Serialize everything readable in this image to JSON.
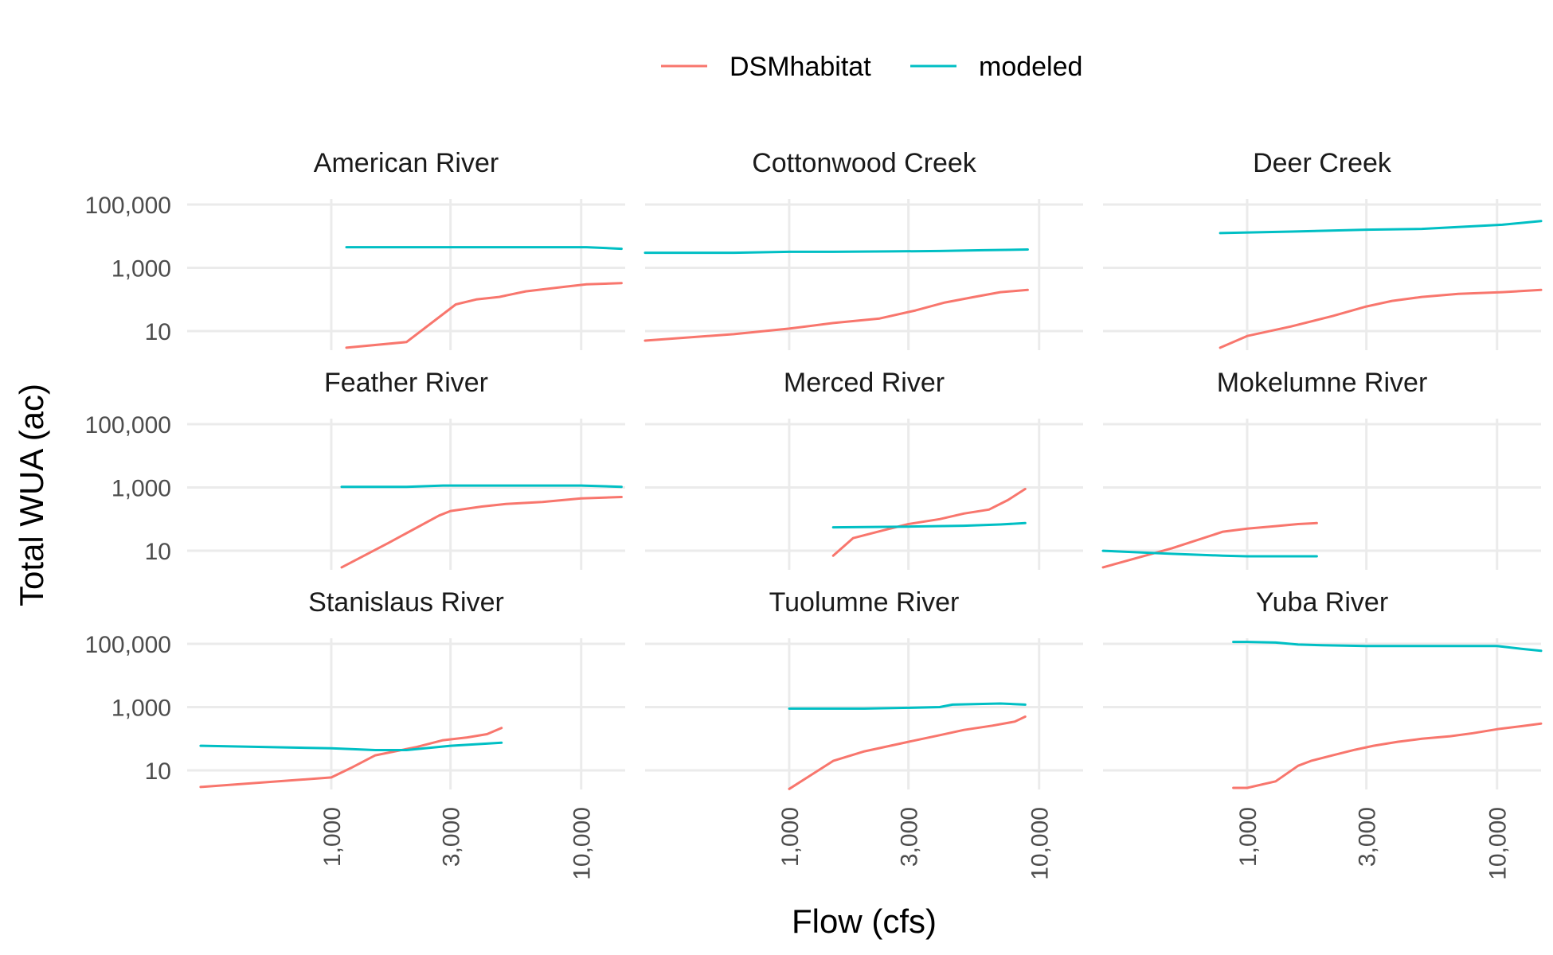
{
  "chart_data": {
    "type": "line",
    "xlabel": "Flow (cfs)",
    "ylabel": "Total WUA (ac)",
    "x_scale": "log10",
    "y_scale": "log10",
    "xlim": [
      265,
      15000
    ],
    "ylim": [
      2.5,
      150000
    ],
    "x_ticks": [
      1000,
      3000,
      10000
    ],
    "x_tick_labels": [
      "1,000",
      "3,000",
      "10,000"
    ],
    "y_ticks": [
      10,
      1000,
      100000
    ],
    "y_tick_labels": [
      "10",
      "1,000",
      "100,000"
    ],
    "grid": true,
    "legend_position": "top",
    "series_names": [
      "DSMhabitat",
      "modeled"
    ],
    "series_colors": {
      "DSMhabitat": "#F8766D",
      "modeled": "#00BFC4"
    },
    "facets": [
      {
        "title": "American River",
        "series": [
          {
            "name": "DSMhabitat",
            "x": [
              1150,
              2000,
              3150,
              3800,
              4700,
              6000,
              8500,
              10500,
              14500
            ],
            "y": [
              3,
              4.5,
              70,
              100,
              120,
              180,
              250,
              300,
              330
            ]
          },
          {
            "name": "modeled",
            "x": [
              1150,
              2000,
              3000,
              5000,
              8000,
              10500,
              14500
            ],
            "y": [
              4500,
              4500,
              4500,
              4500,
              4500,
              4500,
              4000
            ]
          }
        ]
      },
      {
        "title": "Cottonwood Creek",
        "series": [
          {
            "name": "DSMhabitat",
            "x": [
              265,
              600,
              1000,
              1500,
              2300,
              3200,
              4200,
              5500,
              7000,
              9000
            ],
            "y": [
              5,
              8,
              12,
              18,
              25,
              45,
              80,
              120,
              170,
              200
            ]
          },
          {
            "name": "modeled",
            "x": [
              265,
              600,
              1000,
              1500,
              2500,
              4000,
              6000,
              9000
            ],
            "y": [
              3000,
              3000,
              3200,
              3200,
              3300,
              3400,
              3600,
              3800
            ]
          }
        ]
      },
      {
        "title": "Deer Creek",
        "series": [
          {
            "name": "DSMhabitat",
            "x": [
              780,
              1000,
              1500,
              2200,
              3000,
              3800,
              5000,
              7000,
              10500,
              15000
            ],
            "y": [
              3,
              7,
              14,
              30,
              60,
              90,
              120,
              150,
              170,
              200
            ]
          },
          {
            "name": "modeled",
            "x": [
              780,
              1500,
              3000,
              5000,
              7500,
              10500,
              15000
            ],
            "y": [
              12500,
              14000,
              16000,
              17000,
              20000,
              23000,
              30000
            ]
          }
        ]
      },
      {
        "title": "Feather River",
        "series": [
          {
            "name": "DSMhabitat",
            "x": [
              1100,
              1700,
              2700,
              3000,
              4000,
              5000,
              7000,
              10000,
              14500
            ],
            "y": [
              3,
              18,
              130,
              180,
              250,
              300,
              350,
              450,
              500
            ]
          },
          {
            "name": "modeled",
            "x": [
              1100,
              2000,
              2800,
              5000,
              10000,
              14500
            ],
            "y": [
              1050,
              1050,
              1150,
              1150,
              1150,
              1050
            ]
          }
        ]
      },
      {
        "title": "Merced River",
        "series": [
          {
            "name": "DSMhabitat",
            "x": [
              1500,
              1800,
              2400,
              3000,
              4000,
              5000,
              6300,
              7500,
              8800
            ],
            "y": [
              7,
              25,
              45,
              70,
              100,
              150,
              200,
              400,
              900
            ]
          },
          {
            "name": "modeled",
            "x": [
              1500,
              3000,
              5000,
              7000,
              8800
            ],
            "y": [
              55,
              58,
              62,
              68,
              75
            ]
          }
        ]
      },
      {
        "title": "Mokelumne River",
        "series": [
          {
            "name": "DSMhabitat",
            "x": [
              265,
              500,
              800,
              1000,
              1300,
              1600,
              1900
            ],
            "y": [
              3,
              12,
              40,
              50,
              60,
              70,
              75
            ]
          },
          {
            "name": "modeled",
            "x": [
              265,
              500,
              800,
              1000,
              1500,
              1900
            ],
            "y": [
              10,
              8,
              7,
              6.7,
              6.7,
              6.7
            ]
          }
        ]
      },
      {
        "title": "Stanislaus River",
        "series": [
          {
            "name": "DSMhabitat",
            "x": [
              300,
              1000,
              1200,
              1500,
              2200,
              2800,
              3500,
              4200,
              4800
            ],
            "y": [
              3,
              6,
              12,
              30,
              55,
              90,
              110,
              140,
              220
            ]
          },
          {
            "name": "modeled",
            "x": [
              300,
              1000,
              1500,
              2000,
              3000,
              4800
            ],
            "y": [
              60,
              50,
              44,
              44,
              60,
              75
            ]
          }
        ]
      },
      {
        "title": "Tuolumne River",
        "series": [
          {
            "name": "DSMhabitat",
            "x": [
              1000,
              1500,
              2000,
              3000,
              4000,
              5000,
              6500,
              8000,
              8800
            ],
            "y": [
              2.6,
              20,
              40,
              80,
              130,
              190,
              260,
              350,
              500
            ]
          },
          {
            "name": "modeled",
            "x": [
              1000,
              1500,
              2000,
              3000,
              4000,
              4500,
              5500,
              7000,
              8800
            ],
            "y": [
              900,
              900,
              900,
              950,
              1000,
              1200,
              1250,
              1300,
              1200
            ]
          }
        ]
      },
      {
        "title": "Yuba River",
        "series": [
          {
            "name": "DSMhabitat",
            "x": [
              880,
              1000,
              1300,
              1600,
              1800,
              2200,
              2700,
              3200,
              4000,
              5000,
              6500,
              8000,
              10000,
              12500,
              15000
            ],
            "y": [
              2.8,
              2.8,
              4.5,
              14,
              20,
              30,
              45,
              60,
              80,
              100,
              120,
              150,
              200,
              250,
              300
            ]
          },
          {
            "name": "modeled",
            "x": [
              880,
              1000,
              1300,
              1600,
              2000,
              3000,
              5000,
              10000,
              12500,
              15000
            ],
            "y": [
              115000,
              115000,
              110000,
              95000,
              90000,
              85000,
              85000,
              85000,
              70000,
              60000
            ]
          }
        ]
      }
    ]
  }
}
